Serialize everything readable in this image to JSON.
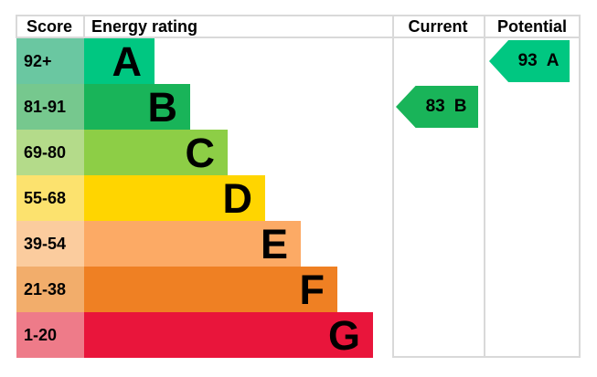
{
  "chart_data": {
    "type": "bar",
    "title": "Energy rating",
    "categories": [
      "A",
      "B",
      "C",
      "D",
      "E",
      "F",
      "G"
    ],
    "score_ranges": [
      "92+",
      "81-91",
      "69-80",
      "55-68",
      "39-54",
      "21-38",
      "1-20"
    ],
    "bar_relative_lengths": [
      77,
      116,
      157,
      198,
      237,
      277,
      316
    ],
    "current": {
      "score": 83,
      "rating": "B"
    },
    "potential": {
      "score": 93,
      "rating": "A"
    },
    "legend_position": "none",
    "grid": "column-separators-only"
  },
  "ui": {
    "header": {
      "score": "Score",
      "energy_rating": "Energy rating",
      "current": "Current",
      "potential": "Potential"
    },
    "bands": [
      {
        "letter": "A",
        "score_range": "92+",
        "band_color": "#00c781",
        "score_cell_color": "#6ac7a1",
        "band_width": 77
      },
      {
        "letter": "B",
        "score_range": "81-91",
        "band_color": "#19b459",
        "score_cell_color": "#76c88e",
        "band_width": 116
      },
      {
        "letter": "C",
        "score_range": "69-80",
        "band_color": "#8dce46",
        "score_cell_color": "#b4db8a",
        "band_width": 157
      },
      {
        "letter": "D",
        "score_range": "55-68",
        "band_color": "#ffd500",
        "score_cell_color": "#fce26e",
        "band_width": 198
      },
      {
        "letter": "E",
        "score_range": "39-54",
        "band_color": "#fcaa65",
        "score_cell_color": "#fbcc9e",
        "band_width": 237
      },
      {
        "letter": "F",
        "score_range": "21-38",
        "band_color": "#ef8023",
        "score_cell_color": "#f2ad6b",
        "band_width": 277
      },
      {
        "letter": "G",
        "score_range": "1-20",
        "band_color": "#e9153b",
        "score_cell_color": "#ee7b89",
        "band_width": 316
      }
    ],
    "current": {
      "value": "83",
      "letter": "B",
      "color": "#19b459",
      "row_index": 1
    },
    "potential": {
      "value": "93",
      "letter": "A",
      "color": "#00c781",
      "row_index": 0
    },
    "border_color": "#d9d9d9"
  }
}
